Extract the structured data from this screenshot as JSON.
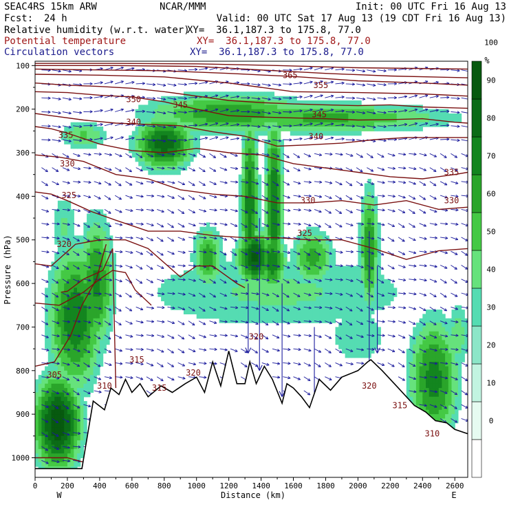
{
  "header": {
    "model": "SEAC4RS 15km ARW",
    "center": "NCAR/MMM",
    "init": "Init: 00 UTC Fri 16 Aug 13",
    "fcst_label": "Fcst:",
    "fcst_value": "24 h",
    "valid": "Valid: 00 UTC Sat 17 Aug 13 (19 CDT Fri 16 Aug 13)",
    "fields": [
      {
        "name": "Relative humidity (w.r.t. water)",
        "xy": "XY=  36.1,187.3 to 175.8, 77.0",
        "color": "#000000"
      },
      {
        "name": "Potential temperature",
        "xy": "XY=  36.1,187.3 to 175.8, 77.0",
        "color": "#a01818"
      },
      {
        "name": "Circulation vectors",
        "xy": "XY=  36.1,187.3 to 175.8, 77.0",
        "color": "#1a1a8c"
      }
    ]
  },
  "colors": {
    "terrain": "#000000",
    "theta": "#7a1010",
    "vectors": "#1a1a9c",
    "rh_bins": [
      "#ffffff",
      "#e6fbf1",
      "#c2f4e1",
      "#8ce6c8",
      "#55dcb2",
      "#66e27c",
      "#44c944",
      "#2aa52a",
      "#13851f",
      "#0b6b17",
      "#07590f"
    ]
  },
  "chart_data": {
    "type": "heatmap",
    "xlabel": "Distance (km)",
    "ylabel": "Pressure (hPa)",
    "xlim": [
      0,
      2680
    ],
    "ylim": [
      1050,
      100
    ],
    "x_ticks": [
      0,
      200,
      400,
      600,
      800,
      1000,
      1200,
      1400,
      1600,
      1800,
      2000,
      2200,
      2400,
      2600
    ],
    "y_ticks": [
      100,
      200,
      300,
      400,
      500,
      600,
      700,
      800,
      900,
      1000
    ],
    "x_end_labels": {
      "left": "W",
      "right": "E"
    },
    "colorbar": {
      "unit": "%",
      "ticks": [
        100,
        90,
        80,
        70,
        60,
        50,
        40,
        30,
        20,
        10,
        0
      ],
      "bin_edges": [
        -10,
        0,
        10,
        20,
        30,
        40,
        50,
        60,
        70,
        80,
        90,
        100,
        110
      ]
    },
    "terrain_surface": {
      "x": [
        0,
        50,
        150,
        290,
        360,
        430,
        470,
        520,
        560,
        600,
        650,
        700,
        780,
        850,
        930,
        1000,
        1050,
        1100,
        1150,
        1200,
        1250,
        1300,
        1330,
        1370,
        1420,
        1470,
        1530,
        1560,
        1600,
        1650,
        1700,
        1760,
        1830,
        1900,
        2000,
        2060,
        2080,
        2150,
        2250,
        2350,
        2420,
        2480,
        2550,
        2600,
        2680
      ],
      "p": [
        1025,
        1025,
        1025,
        1025,
        870,
        890,
        840,
        855,
        820,
        850,
        830,
        860,
        835,
        850,
        830,
        815,
        850,
        780,
        835,
        755,
        830,
        830,
        780,
        830,
        790,
        820,
        875,
        830,
        840,
        860,
        885,
        820,
        845,
        815,
        800,
        780,
        775,
        800,
        840,
        880,
        895,
        915,
        920,
        935,
        945
      ]
    },
    "theta_contours": [
      {
        "label": "305",
        "x": [
          0,
          200,
          350,
          460
        ],
        "p": [
          1000,
          1000,
          1015,
          1025
        ]
      },
      {
        "label": "305",
        "x": [
          0,
          120,
          220,
          290,
          380,
          440
        ],
        "p": [
          790,
          780,
          720,
          650,
          590,
          510
        ]
      },
      {
        "label": "310",
        "x": [
          160,
          200,
          300,
          420,
          480,
          500
        ],
        "p": [
          620,
          618,
          590,
          570,
          520,
          840
        ]
      },
      {
        "label": "315",
        "x": [
          0,
          150,
          300,
          400,
          480,
          560,
          620,
          720
        ],
        "p": [
          645,
          650,
          620,
          590,
          570,
          575,
          615,
          650
        ]
      },
      {
        "label": "320",
        "x": [
          0,
          100,
          250,
          400,
          560,
          700,
          900,
          1000,
          1100,
          1250,
          1300
        ],
        "p": [
          555,
          560,
          510,
          500,
          500,
          520,
          585,
          560,
          560,
          600,
          610
        ]
      },
      {
        "label": "325",
        "x": [
          0,
          100,
          200,
          350,
          500,
          700,
          900,
          1100,
          1300,
          1500,
          1700,
          1900,
          2100,
          2300,
          2500,
          2680
        ],
        "p": [
          390,
          395,
          410,
          435,
          455,
          480,
          480,
          490,
          495,
          495,
          500,
          500,
          520,
          545,
          525,
          520
        ]
      },
      {
        "label": "330",
        "x": [
          0,
          150,
          300,
          500,
          700,
          900,
          1100,
          1300,
          1500,
          1700,
          1900,
          2100,
          2300,
          2500,
          2680
        ],
        "p": [
          305,
          310,
          320,
          350,
          360,
          385,
          395,
          400,
          415,
          415,
          410,
          420,
          410,
          430,
          425
        ]
      },
      {
        "label": "335",
        "x": [
          0,
          100,
          200,
          400,
          600,
          800,
          1000,
          1200,
          1400,
          1600,
          1800,
          2000,
          2200,
          2400,
          2600,
          2680
        ],
        "p": [
          240,
          245,
          255,
          280,
          295,
          300,
          290,
          300,
          305,
          325,
          335,
          345,
          355,
          360,
          350,
          345
        ]
      },
      {
        "label": "340",
        "x": [
          0,
          100,
          300,
          500,
          700,
          900,
          1100,
          1300,
          1500,
          1700,
          1900,
          2100,
          2300,
          2500,
          2680
        ],
        "p": [
          210,
          215,
          225,
          232,
          235,
          238,
          252,
          262,
          285,
          282,
          278,
          270,
          265,
          265,
          265
        ]
      },
      {
        "label": "345",
        "x": [
          0,
          200,
          400,
          600,
          800,
          1000,
          1200,
          1400,
          1600,
          1800,
          2000,
          2200,
          2400,
          2600,
          2680
        ],
        "p": [
          160,
          162,
          168,
          172,
          183,
          200,
          215,
          218,
          220,
          222,
          225,
          224,
          222,
          230,
          232
        ]
      },
      {
        "label": "350",
        "x": [
          0,
          200,
          400,
          600,
          800,
          1000,
          1200,
          1400,
          1600,
          1800,
          2000,
          2200,
          2400,
          2680
        ],
        "p": [
          140,
          145,
          148,
          152,
          160,
          170,
          180,
          185,
          188,
          190,
          192,
          190,
          195,
          198
        ]
      },
      {
        "label": "355",
        "x": [
          0,
          400,
          800,
          1200,
          1400,
          1600,
          2000,
          2400,
          2680
        ],
        "p": [
          120,
          122,
          126,
          140,
          150,
          160,
          162,
          165,
          170
        ]
      },
      {
        "label": "360",
        "x": [
          0,
          400,
          800,
          1200,
          1600,
          2000,
          2400,
          2680
        ],
        "p": [
          108,
          110,
          112,
          118,
          125,
          135,
          140,
          145
        ]
      },
      {
        "label": "365",
        "x": [
          0,
          500,
          1000,
          1400,
          1800,
          2200,
          2680
        ],
        "p": [
          100,
          100,
          102,
          110,
          118,
          124,
          128
        ]
      },
      {
        "label": "",
        "x": [
          0,
          500,
          1000,
          1500,
          2000,
          2680
        ],
        "p": [
          95,
          95,
          96,
          100,
          105,
          108
        ]
      }
    ],
    "theta_labels": [
      {
        "text": "365",
        "x": 1580,
        "p": 122
      },
      {
        "text": "355",
        "x": 1770,
        "p": 145
      },
      {
        "text": "350",
        "x": 610,
        "p": 178
      },
      {
        "text": "345",
        "x": 900,
        "p": 190
      },
      {
        "text": "345",
        "x": 1760,
        "p": 212
      },
      {
        "text": "340",
        "x": 610,
        "p": 230
      },
      {
        "text": "340",
        "x": 1740,
        "p": 263
      },
      {
        "text": "335",
        "x": 190,
        "p": 260
      },
      {
        "text": "335",
        "x": 2580,
        "p": 345
      },
      {
        "text": "330",
        "x": 200,
        "p": 325
      },
      {
        "text": "330",
        "x": 1690,
        "p": 410
      },
      {
        "text": "330",
        "x": 2580,
        "p": 410
      },
      {
        "text": "325",
        "x": 210,
        "p": 398
      },
      {
        "text": "325",
        "x": 1670,
        "p": 485
      },
      {
        "text": "320",
        "x": 180,
        "p": 510
      },
      {
        "text": "320",
        "x": 1370,
        "p": 722
      },
      {
        "text": "320",
        "x": 980,
        "p": 805
      },
      {
        "text": "320",
        "x": 2070,
        "p": 835
      },
      {
        "text": "315",
        "x": 630,
        "p": 775
      },
      {
        "text": "315",
        "x": 770,
        "p": 840
      },
      {
        "text": "315",
        "x": 2260,
        "p": 880
      },
      {
        "text": "310",
        "x": 430,
        "p": 835
      },
      {
        "text": "310",
        "x": 2460,
        "p": 945
      },
      {
        "text": "305",
        "x": 120,
        "p": 810
      }
    ],
    "rh_moist_blobs": [
      {
        "x": 140,
        "p": 920,
        "sx": 120,
        "sp": 90,
        "rh": 98
      },
      {
        "x": 250,
        "p": 680,
        "sx": 140,
        "sp": 140,
        "rh": 78
      },
      {
        "x": 380,
        "p": 600,
        "sx": 90,
        "sp": 130,
        "rh": 72
      },
      {
        "x": 180,
        "p": 470,
        "sx": 80,
        "sp": 80,
        "rh": 42
      },
      {
        "x": 300,
        "p": 260,
        "sx": 130,
        "sp": 30,
        "rh": 52
      },
      {
        "x": 800,
        "p": 280,
        "sx": 150,
        "sp": 50,
        "rh": 85
      },
      {
        "x": 1200,
        "p": 210,
        "sx": 450,
        "sp": 40,
        "rh": 68
      },
      {
        "x": 1800,
        "p": 220,
        "sx": 700,
        "sp": 30,
        "rh": 62
      },
      {
        "x": 1330,
        "p": 420,
        "sx": 45,
        "sp": 180,
        "rh": 78
      },
      {
        "x": 1480,
        "p": 420,
        "sx": 45,
        "sp": 180,
        "rh": 80
      },
      {
        "x": 1070,
        "p": 540,
        "sx": 80,
        "sp": 60,
        "rh": 66
      },
      {
        "x": 1360,
        "p": 540,
        "sx": 90,
        "sp": 50,
        "rh": 92
      },
      {
        "x": 1470,
        "p": 550,
        "sx": 70,
        "sp": 50,
        "rh": 80
      },
      {
        "x": 1720,
        "p": 540,
        "sx": 110,
        "sp": 55,
        "rh": 64
      },
      {
        "x": 2070,
        "p": 520,
        "sx": 50,
        "sp": 120,
        "rh": 70
      },
      {
        "x": 1500,
        "p": 620,
        "sx": 900,
        "sp": 90,
        "rh": 42
      },
      {
        "x": 2000,
        "p": 720,
        "sx": 200,
        "sp": 80,
        "rh": 38
      },
      {
        "x": 2470,
        "p": 820,
        "sx": 130,
        "sp": 120,
        "rh": 75
      },
      {
        "x": 2620,
        "p": 720,
        "sx": 70,
        "sp": 80,
        "rh": 45
      }
    ]
  }
}
